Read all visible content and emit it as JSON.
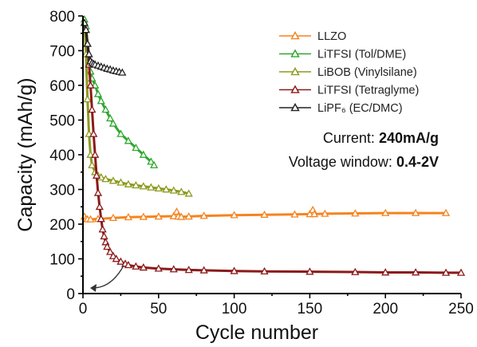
{
  "chart_data": {
    "type": "scatter",
    "xlabel": "Cycle number",
    "ylabel": "Capacity (mAh/g)",
    "xlim": [
      0,
      250
    ],
    "ylim": [
      0,
      800
    ],
    "xticks": [
      "0",
      "50",
      "100",
      "150",
      "200",
      "250"
    ],
    "yticks": [
      "0",
      "100",
      "200",
      "300",
      "400",
      "500",
      "600",
      "700",
      "800"
    ],
    "grid": false,
    "legend_position": "top-right",
    "annotations": {
      "current_label": "Current:",
      "current_value": "240mA/g",
      "voltage_label": "Voltage window:",
      "voltage_value": "0.4-2V"
    },
    "series": [
      {
        "name": "LLZO",
        "color": "#f5841f",
        "marker": "open-triangle",
        "x": [
          1,
          2,
          3,
          5,
          10,
          20,
          30,
          40,
          50,
          60,
          62,
          63,
          65,
          70,
          80,
          100,
          120,
          140,
          150,
          152,
          153,
          160,
          180,
          200,
          220,
          240
        ],
        "y": [
          222,
          215,
          214,
          214,
          215,
          218,
          220,
          221,
          222,
          223,
          236,
          222,
          221,
          222,
          224,
          226,
          227,
          228,
          229,
          241,
          229,
          230,
          231,
          232,
          232,
          232
        ]
      },
      {
        "name": "LiTFSI (Tol/DME)",
        "color": "#2ea82e",
        "marker": "open-triangle",
        "x": [
          1,
          2,
          3,
          4,
          5,
          6,
          8,
          10,
          12,
          15,
          18,
          20,
          25,
          30,
          35,
          40,
          45,
          47
        ],
        "y": [
          790,
          770,
          720,
          670,
          640,
          620,
          600,
          575,
          555,
          530,
          505,
          490,
          460,
          440,
          420,
          400,
          380,
          370
        ]
      },
      {
        "name": "LiBOB (Vinylsilane)",
        "color": "#8c9a1e",
        "marker": "open-triangle",
        "x": [
          1,
          2,
          3,
          4,
          5,
          6,
          8,
          10,
          12,
          15,
          20,
          25,
          30,
          35,
          40,
          45,
          50,
          55,
          60,
          65,
          70
        ],
        "y": [
          780,
          690,
          560,
          460,
          400,
          370,
          350,
          340,
          335,
          330,
          325,
          320,
          315,
          312,
          309,
          306,
          303,
          300,
          297,
          293,
          288
        ]
      },
      {
        "name": "LiTFSI (Tetraglyme)",
        "color": "#8b1a1a",
        "marker": "open-triangle",
        "x": [
          1,
          2,
          3,
          4,
          5,
          6,
          7,
          8,
          9,
          10,
          11,
          12,
          13,
          14,
          15,
          16,
          18,
          20,
          22,
          25,
          28,
          30,
          35,
          40,
          50,
          60,
          70,
          80,
          100,
          120,
          150,
          180,
          200,
          220,
          240,
          250
        ],
        "y": [
          780,
          760,
          720,
          660,
          600,
          530,
          460,
          400,
          340,
          290,
          250,
          215,
          185,
          165,
          148,
          135,
          120,
          108,
          100,
          92,
          86,
          82,
          78,
          75,
          72,
          70,
          68,
          67,
          65,
          64,
          63,
          62,
          61,
          61,
          60,
          60
        ]
      },
      {
        "name": "LiPF₆ (EC/DMC)",
        "color": "#222222",
        "marker": "open-triangle",
        "x": [
          1,
          2,
          3,
          4,
          5,
          6,
          7,
          8,
          10,
          12,
          14,
          16,
          18,
          20,
          22,
          24,
          26
        ],
        "y": [
          780,
          760,
          720,
          690,
          670,
          665,
          662,
          660,
          657,
          654,
          651,
          648,
          646,
          643,
          641,
          639,
          637
        ]
      }
    ]
  }
}
